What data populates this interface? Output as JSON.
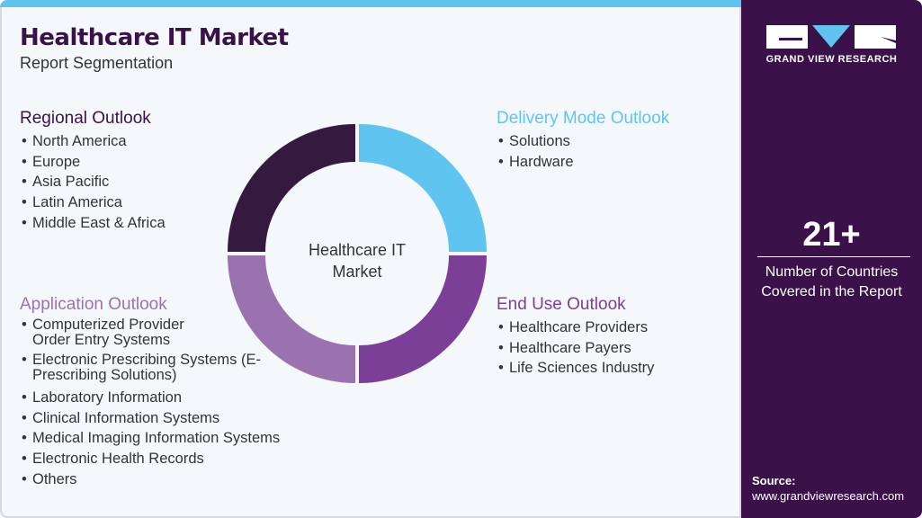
{
  "header": {
    "title": "Healthcare IT Market",
    "subtitle": "Report Segmentation"
  },
  "donut": {
    "center_label_1": "Healthcare IT",
    "center_label_2": "Market",
    "colors": [
      "#5fc5f0",
      "#7b3f98",
      "#9b72b0",
      "#35193f"
    ]
  },
  "sections": {
    "regional": {
      "title": "Regional Outlook",
      "color": "#3a1149",
      "items": [
        "North America",
        "Europe",
        "Asia Pacific",
        "Latin America",
        "Middle East & Africa"
      ]
    },
    "delivery": {
      "title": "Delivery Mode Outlook",
      "color": "#5fc5f0",
      "items": [
        "Solutions",
        "Hardware"
      ]
    },
    "application": {
      "title": "Application Outlook",
      "color": "#9b72b0",
      "items": [
        "Computerized Provider Order Entry Systems",
        "Electronic Prescribing Systems (E-Prescribing Solutions)",
        "Laboratory Information",
        "Clinical Information Systems",
        "Medical Imaging Information Systems",
        "Electronic Health Records",
        "Others"
      ]
    },
    "enduse": {
      "title": "End Use Outlook",
      "color": "#7b3f98",
      "items": [
        "Healthcare Providers",
        "Healthcare Payers",
        "Life Sciences Industry"
      ]
    }
  },
  "sidebar": {
    "brand": "GRAND VIEW RESEARCH",
    "stat": "21+",
    "stat_caption": "Number of Countries Covered in the Report",
    "source_label": "Source:",
    "source_url": "www.grandviewresearch.com"
  }
}
